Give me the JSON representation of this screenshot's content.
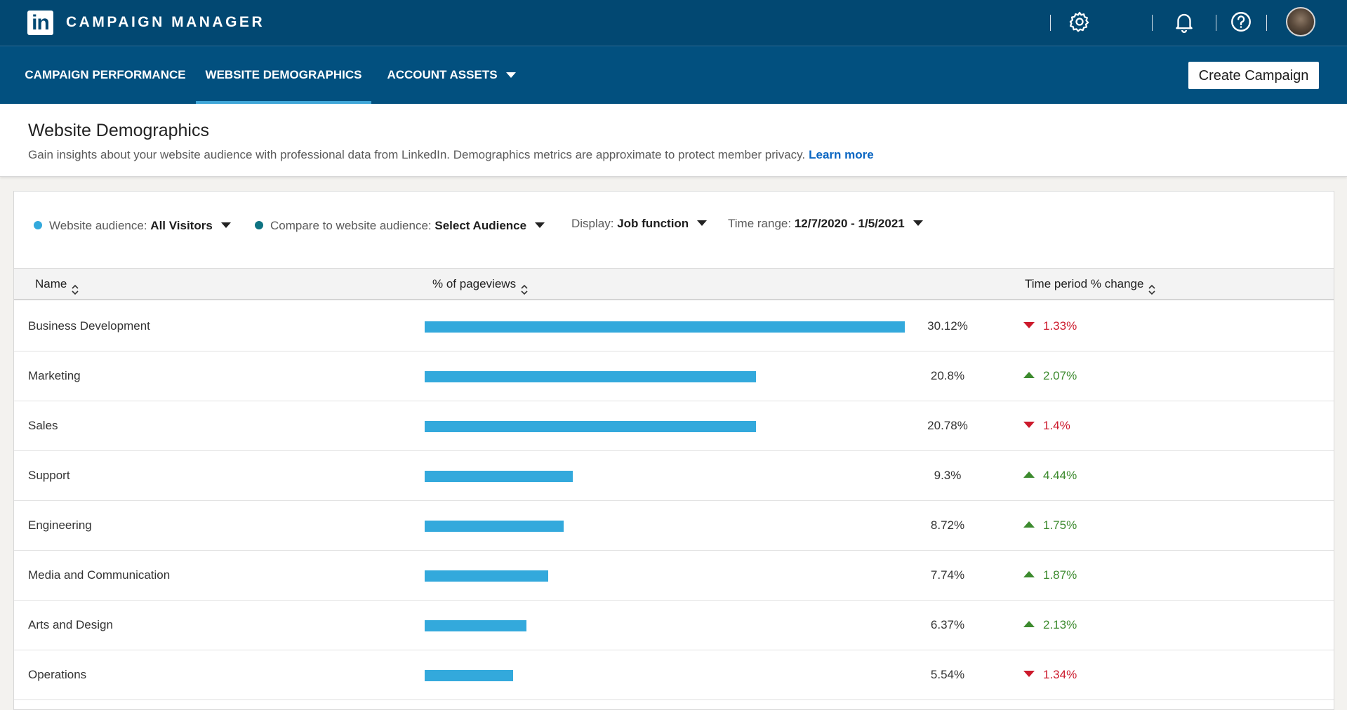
{
  "header": {
    "logo_text": "in",
    "app_title": "CAMPAIGN MANAGER",
    "icons": [
      "gear-icon",
      "bell-icon",
      "help-icon"
    ]
  },
  "nav": {
    "tabs": [
      {
        "label": "CAMPAIGN PERFORMANCE"
      },
      {
        "label": "WEBSITE DEMOGRAPHICS",
        "active": true
      },
      {
        "label": "ACCOUNT ASSETS"
      }
    ],
    "create_button": "Create Campaign"
  },
  "page": {
    "title": "Website Demographics",
    "description": "Gain insights about your website audience with professional data from LinkedIn. Demographics metrics are approximate to protect member privacy.",
    "learn_more": "Learn more"
  },
  "filters": {
    "audience_label": "Website audience:",
    "audience_value": "All Visitors",
    "compare_label": "Compare to website audience:",
    "compare_value": "Select Audience",
    "display_label": "Display:",
    "display_value": "Job function",
    "time_label": "Time range:",
    "time_value": "12/7/2020 - 1/5/2021"
  },
  "table": {
    "columns": {
      "name": "Name",
      "pageviews": "% of pageviews",
      "change": "Time period % change"
    },
    "rows": [
      {
        "name": "Business Development",
        "pct": "30.12%",
        "pct_value": 30.12,
        "change": "1.33%",
        "direction": "down"
      },
      {
        "name": "Marketing",
        "pct": "20.8%",
        "pct_value": 20.8,
        "change": "2.07%",
        "direction": "up"
      },
      {
        "name": "Sales",
        "pct": "20.78%",
        "pct_value": 20.78,
        "change": "1.4%",
        "direction": "down"
      },
      {
        "name": "Support",
        "pct": "9.3%",
        "pct_value": 9.3,
        "change": "4.44%",
        "direction": "up"
      },
      {
        "name": "Engineering",
        "pct": "8.72%",
        "pct_value": 8.72,
        "change": "1.75%",
        "direction": "up"
      },
      {
        "name": "Media and Communication",
        "pct": "7.74%",
        "pct_value": 7.74,
        "change": "1.87%",
        "direction": "up"
      },
      {
        "name": "Arts and Design",
        "pct": "6.37%",
        "pct_value": 6.37,
        "change": "2.13%",
        "direction": "up"
      },
      {
        "name": "Operations",
        "pct": "5.54%",
        "pct_value": 5.54,
        "change": "1.34%",
        "direction": "down"
      }
    ]
  },
  "colors": {
    "header_bg": "#024872",
    "nav_bg": "#02507f",
    "bar": "#33a9dc",
    "audience_dot": "#33a9dc",
    "compare_dot": "#0e7382",
    "down": "#cc1a2c",
    "up": "#3c8a2e",
    "link": "#0a66c2"
  }
}
